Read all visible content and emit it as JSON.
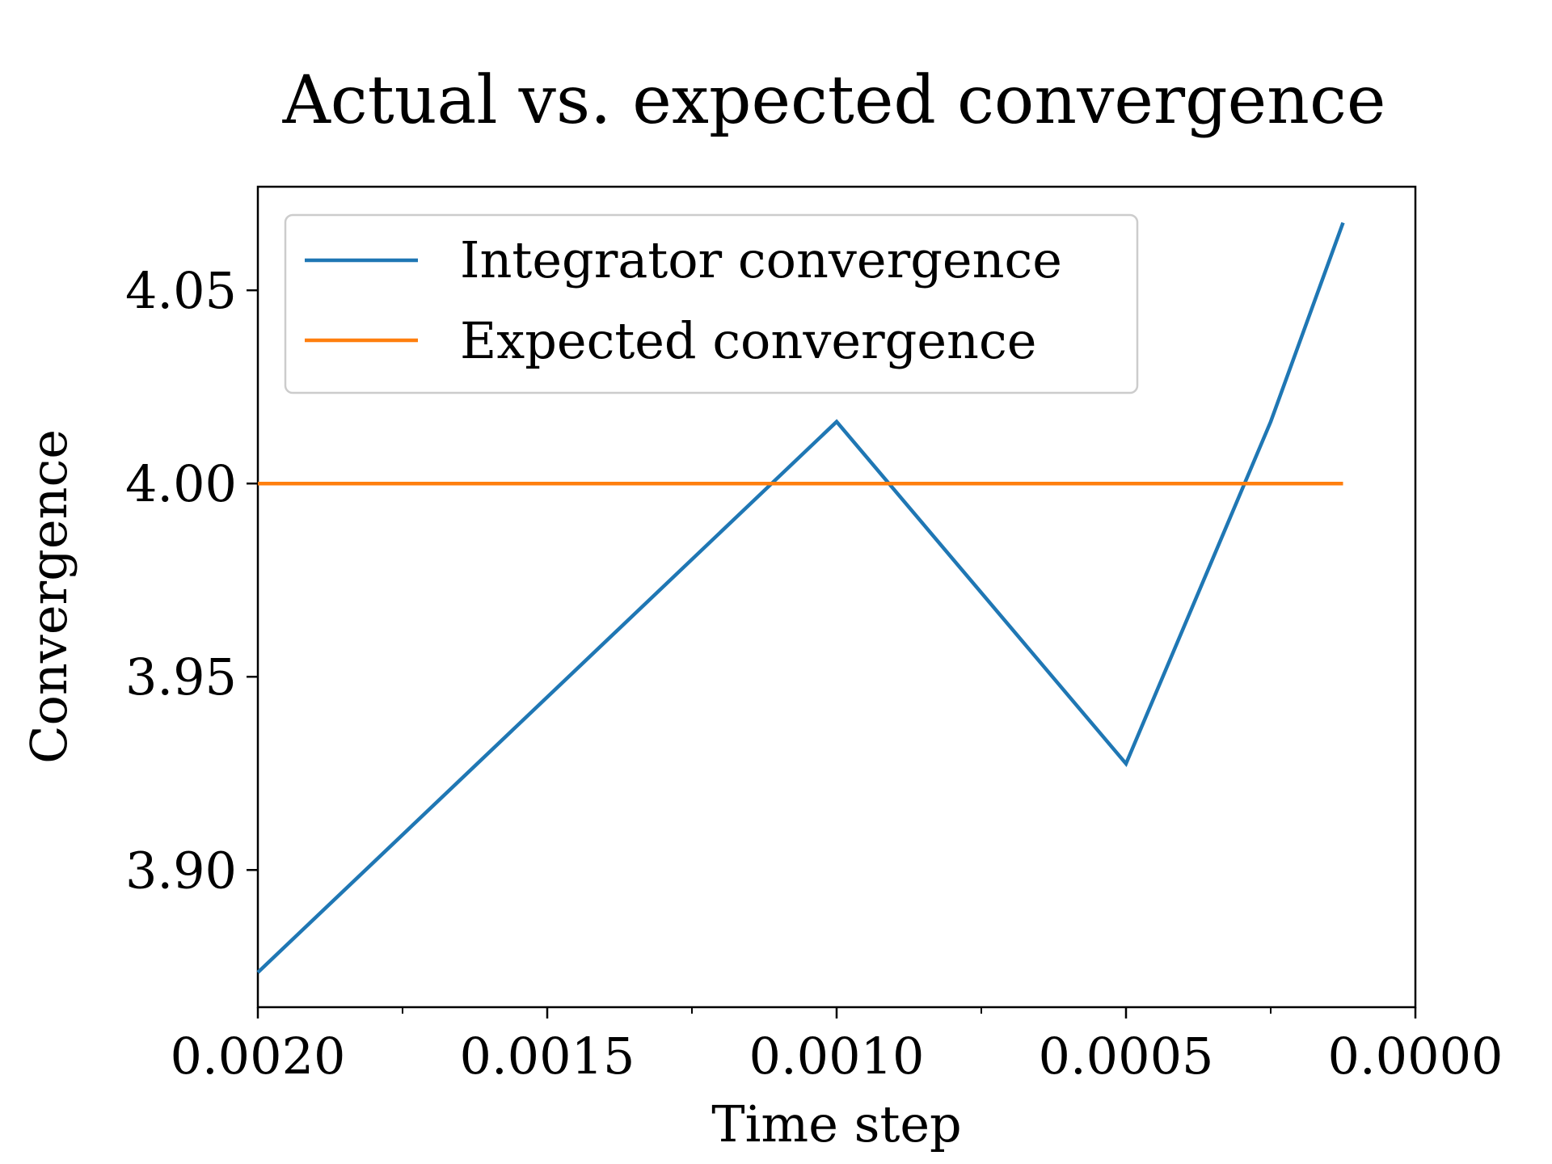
{
  "chart_data": {
    "type": "line",
    "title": "Actual vs. expected convergence",
    "xlabel": "Time step",
    "ylabel": "Convergence",
    "xlim": [
      0.002,
      0.0
    ],
    "ylim": [
      3.8645,
      4.0768
    ],
    "x_inverted": true,
    "x_ticks": [
      0.002,
      0.0015,
      0.001,
      0.0005,
      0.0
    ],
    "x_tick_labels": [
      "0.0020",
      "0.0015",
      "0.0010",
      "0.0005",
      "0.0000"
    ],
    "x_minor_ticks": [
      0.00175,
      0.00125,
      0.00075,
      0.00025
    ],
    "y_ticks": [
      3.9,
      3.95,
      4.0,
      4.05
    ],
    "y_tick_labels": [
      "3.90",
      "3.95",
      "4.00",
      "4.05"
    ],
    "grid": false,
    "legend_position": "upper-left",
    "series": [
      {
        "name": "Integrator convergence",
        "color": "#1f77b4",
        "x": [
          0.002,
          0.001,
          0.0005,
          0.00025,
          0.000125
        ],
        "y": [
          3.8735,
          4.016,
          3.9275,
          4.016,
          4.0675
        ]
      },
      {
        "name": "Expected convergence",
        "color": "#ff7f0e",
        "x": [
          0.002,
          0.000125
        ],
        "y": [
          4.0,
          4.0
        ]
      }
    ]
  }
}
